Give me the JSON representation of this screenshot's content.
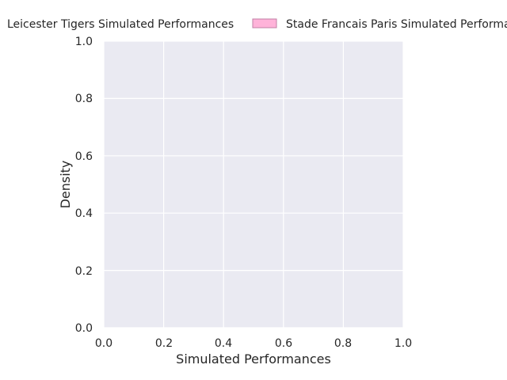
{
  "chart_data": {
    "type": "area",
    "title": "",
    "xlabel": "Simulated Performances",
    "ylabel": "Density",
    "xlim": [
      0.0,
      1.0
    ],
    "ylim": [
      0.0,
      1.0
    ],
    "xticks": [
      "0.0",
      "0.2",
      "0.4",
      "0.6",
      "0.8",
      "1.0"
    ],
    "yticks": [
      "0.0",
      "0.2",
      "0.4",
      "0.6",
      "0.8",
      "1.0"
    ],
    "grid": true,
    "legend_position": "top",
    "series": [
      {
        "name": "Leicester Tigers Simulated Performances",
        "values": []
      },
      {
        "name": "Stade Francais Paris Simulated Performances",
        "values": []
      }
    ],
    "colors": {
      "plot_background": "#eaeaf2",
      "grid": "#ffffff",
      "series_0": "#ffffff",
      "series_1": "#ffb3d9",
      "series_1_edge": "#c07fa5"
    }
  }
}
